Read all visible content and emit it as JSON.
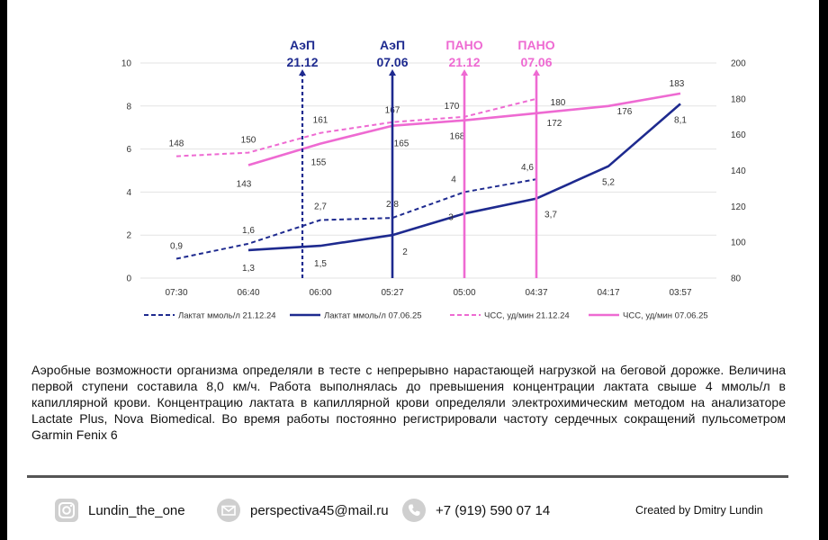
{
  "chart_data": {
    "type": "line",
    "categories": [
      "07:30",
      "06:40",
      "06:00",
      "05:27",
      "05:00",
      "04:37",
      "04:17",
      "03:57"
    ],
    "y_left": {
      "min": 0,
      "max": 10,
      "ticks": [
        "0",
        "2",
        "4",
        "6",
        "8",
        "10"
      ]
    },
    "y_right": {
      "min": 80,
      "max": 200,
      "ticks": [
        "80",
        "100",
        "120",
        "140",
        "160",
        "180",
        "200"
      ]
    },
    "series": [
      {
        "name": "Лактат ммоль/л 21.12.24",
        "axis": "left",
        "color": "#1e2a8f",
        "dashed": true,
        "values": [
          0.9,
          1.6,
          2.7,
          2.8,
          4,
          4.6,
          null,
          null
        ],
        "labels": [
          "0,9",
          "1,6",
          "2,7",
          "2,8",
          "4",
          "4,6",
          "",
          ""
        ]
      },
      {
        "name": "Лактат ммоль/л 07.06.25",
        "axis": "left",
        "color": "#1e2a8f",
        "dashed": false,
        "values": [
          null,
          1.3,
          1.5,
          2,
          3,
          3.7,
          5.2,
          8.1
        ],
        "labels": [
          "",
          "1,3",
          "1,5",
          "2",
          "3",
          "3,7",
          "5,2",
          "8,1"
        ]
      },
      {
        "name": "ЧСС, уд/мин 21.12.24",
        "axis": "right",
        "color": "#ee6ad2",
        "dashed": true,
        "values": [
          148,
          150,
          161,
          167,
          170,
          180,
          null,
          null
        ],
        "labels": [
          "148",
          "150",
          "161",
          "167",
          "170",
          "180",
          "",
          ""
        ]
      },
      {
        "name": "ЧСС, уд/мин 07.06.25",
        "axis": "right",
        "color": "#ee6ad2",
        "dashed": false,
        "values": [
          null,
          143,
          155,
          165,
          168,
          172,
          176,
          183
        ],
        "labels": [
          "",
          "143",
          "155",
          "165",
          "168",
          "172",
          "176",
          "183"
        ]
      }
    ],
    "thresholds": [
      {
        "name": "АэП",
        "date": "21.12",
        "position": 1.75,
        "color": "#1e2a8f",
        "dashed": true
      },
      {
        "name": "АэП",
        "date": "07.06",
        "position": 3,
        "color": "#1e2a8f",
        "dashed": false
      },
      {
        "name": "ПАНО",
        "date": "21.12",
        "position": 4,
        "color": "#ee6ad2",
        "dashed": false
      },
      {
        "name": "ПАНО",
        "date": "07.06",
        "position": 5,
        "color": "#ee6ad2",
        "dashed": false
      }
    ]
  },
  "description": "Аэробные возможности организма определяли в тесте с непрерывно нарастающей нагрузкой на беговой дорожке. Величина первой ступени составила 8,0 км/ч. Работа выполнялась до превышения концентрации лактата свыше 4 ммоль/л в капиллярной крови. Концентрацию лактата в капиллярной крови определяли электрохимическим методом на анализаторе Lactate Plus, Nova Biomedical. Во время работы постоянно регистрировали частоту сердечных сокращений пульсометром Garmin Fenix 6",
  "footer": {
    "instagram": "Lundin_the_one",
    "email": "perspectiva45@mail.ru",
    "phone": "+7 (919) 590 07 14",
    "credit": "Created by Dmitry Lundin"
  }
}
